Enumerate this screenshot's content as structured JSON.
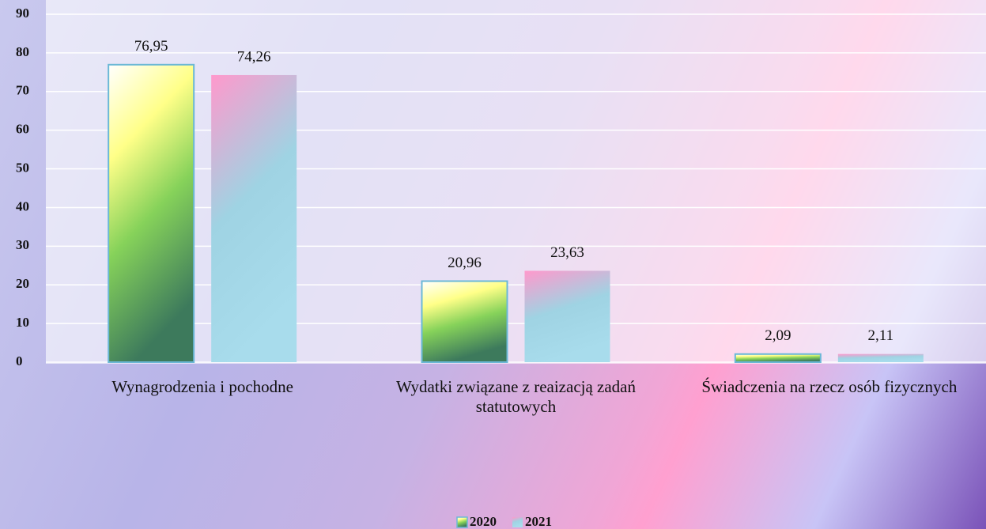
{
  "chart_data": {
    "type": "bar",
    "categories": [
      "Wynagrodzenia i pochodne",
      "Wydatki związane z reaizacją zadań statutowych",
      "Świadczenia na rzecz osób fizycznych"
    ],
    "series": [
      {
        "name": "2020",
        "color": "#86d25a",
        "values": [
          76.95,
          20.96,
          2.09
        ],
        "value_labels": [
          "76,95",
          "20,96",
          "2,09"
        ]
      },
      {
        "name": "2021",
        "color": "#9fd3e3",
        "values": [
          74.26,
          23.63,
          2.11
        ],
        "value_labels": [
          "74,26",
          "23,63",
          "2,11"
        ]
      }
    ],
    "ylim": [
      0,
      90
    ],
    "yticks": [
      0,
      10,
      20,
      30,
      40,
      50,
      60,
      70,
      80,
      90
    ],
    "grid": true,
    "legend": "bottom"
  }
}
